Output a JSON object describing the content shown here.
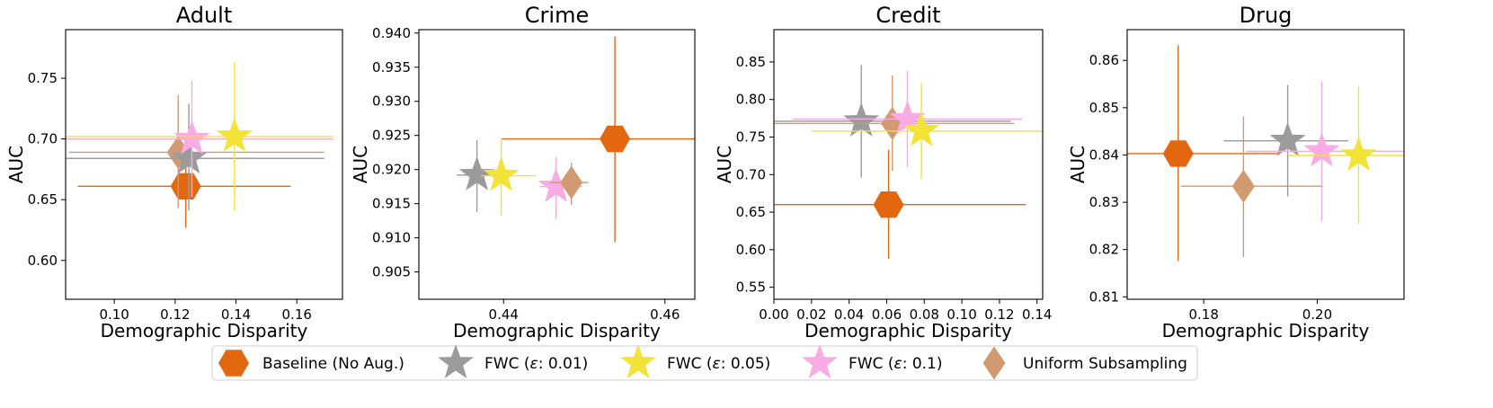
{
  "chart_data": {
    "type": "scatter",
    "legend": {
      "placement": "bottom-center",
      "entries": [
        {
          "label": "Baseline (No Aug.)",
          "marker": "hexagon",
          "color": "#e2670f"
        },
        {
          "label_prefix": "FWC (",
          "label_symbol": "ε",
          "label_suffix": ": 0.01)",
          "marker": "star",
          "color": "#9b9b9b"
        },
        {
          "label_prefix": "FWC (",
          "label_symbol": "ε",
          "label_suffix": ": 0.05)",
          "marker": "star",
          "color": "#f2e336"
        },
        {
          "label_prefix": "FWC (",
          "label_symbol": "ε",
          "label_suffix": ": 0.1)",
          "marker": "star",
          "color": "#f9abe3"
        },
        {
          "label": "Uniform Subsampling",
          "marker": "diamond",
          "color": "#d29a70"
        }
      ]
    },
    "panels": [
      {
        "title": "Adult",
        "xlabel": "Demographic Disparity",
        "ylabel": "AUC",
        "xlim": [
          0.084,
          0.175
        ],
        "ylim": [
          0.568,
          0.79
        ],
        "xticks": [
          0.1,
          0.12,
          0.14,
          0.16
        ],
        "xtick_labels": [
          "0.10",
          "0.12",
          "0.14",
          "0.16"
        ],
        "yticks": [
          0.6,
          0.65,
          0.7,
          0.75
        ],
        "ytick_labels": [
          "0.60",
          "0.65",
          "0.70",
          "0.75"
        ],
        "points": [
          {
            "series": 0,
            "x": 0.1235,
            "y": 0.661,
            "xerr": [
              0.088,
              0.158
            ],
            "yerr": [
              0.627,
              0.698
            ]
          },
          {
            "series": 4,
            "x": 0.121,
            "y": 0.689,
            "xerr": [
              0.085,
              0.169
            ],
            "yerr": [
              0.643,
              0.736
            ]
          },
          {
            "series": 1,
            "x": 0.1245,
            "y": 0.684,
            "xerr": [
              0.08,
              0.169
            ],
            "yerr": [
              0.641,
              0.729
            ]
          },
          {
            "series": 3,
            "x": 0.1255,
            "y": 0.7,
            "xerr": [
              0.08,
              0.172
            ],
            "yerr": [
              0.652,
              0.748
            ]
          },
          {
            "series": 2,
            "x": 0.1395,
            "y": 0.702,
            "xerr": [
              0.08,
              0.172
            ],
            "yerr": [
              0.641,
              0.763
            ]
          }
        ]
      },
      {
        "title": "Crime",
        "xlabel": "Demographic Disparity",
        "ylabel": "AUC",
        "xlim": [
          0.4295,
          0.4637
        ],
        "ylim": [
          0.901,
          0.9405
        ],
        "xticks": [
          0.44,
          0.46
        ],
        "xtick_labels": [
          "0.44",
          "0.46"
        ],
        "yticks": [
          0.905,
          0.91,
          0.915,
          0.92,
          0.925,
          0.93,
          0.935,
          0.94
        ],
        "ytick_labels": [
          "0.905",
          "0.910",
          "0.915",
          "0.920",
          "0.925",
          "0.930",
          "0.935",
          "0.940"
        ],
        "points": [
          {
            "series": 1,
            "x": 0.4367,
            "y": 0.9192,
            "xerr": [
              0.4342,
              0.4402
            ],
            "yerr": [
              0.9138,
              0.9243
            ]
          },
          {
            "series": 2,
            "x": 0.4397,
            "y": 0.9191,
            "xerr": [
              0.4372,
              0.444
            ],
            "yerr": [
              0.9133,
              0.9246
            ]
          },
          {
            "series": 3,
            "x": 0.4465,
            "y": 0.9175,
            "xerr": [
              0.4445,
              0.4498
            ],
            "yerr": [
              0.9128,
              0.9218
            ]
          },
          {
            "series": 4,
            "x": 0.4484,
            "y": 0.9181,
            "xerr": [
              0.4458,
              0.4505
            ],
            "yerr": [
              0.9148,
              0.921
            ]
          },
          {
            "series": 0,
            "x": 0.4538,
            "y": 0.9245,
            "xerr": [
              0.4398,
              0.4637
            ],
            "yerr": [
              0.9094,
              0.9395
            ]
          }
        ]
      },
      {
        "title": "Credit",
        "xlabel": "Demographic Disparity",
        "ylabel": "AUC",
        "xlim": [
          0.0,
          0.143
        ],
        "ylim": [
          0.534,
          0.893
        ],
        "xticks": [
          0.0,
          0.02,
          0.04,
          0.06,
          0.08,
          0.1,
          0.12,
          0.14
        ],
        "xtick_labels": [
          "0.00",
          "0.02",
          "0.04",
          "0.06",
          "0.08",
          "0.10",
          "0.12",
          "0.14"
        ],
        "yticks": [
          0.55,
          0.6,
          0.65,
          0.7,
          0.75,
          0.8,
          0.85
        ],
        "ytick_labels": [
          "0.55",
          "0.60",
          "0.65",
          "0.70",
          "0.75",
          "0.80",
          "0.85"
        ],
        "points": [
          {
            "series": 0,
            "x": 0.061,
            "y": 0.66,
            "xerr": [
              0.0,
              0.134
            ],
            "yerr": [
              0.588,
              0.733
            ]
          },
          {
            "series": 1,
            "x": 0.0465,
            "y": 0.771,
            "xerr": [
              0.0,
              0.126
            ],
            "yerr": [
              0.696,
              0.846
            ]
          },
          {
            "series": 4,
            "x": 0.063,
            "y": 0.768,
            "xerr": [
              0.0,
              0.128
            ],
            "yerr": [
              0.705,
              0.832
            ]
          },
          {
            "series": 3,
            "x": 0.071,
            "y": 0.774,
            "xerr": [
              0.01,
              0.132
            ],
            "yerr": [
              0.71,
              0.838
            ]
          },
          {
            "series": 2,
            "x": 0.0785,
            "y": 0.758,
            "xerr": [
              0.02,
              0.143
            ],
            "yerr": [
              0.694,
              0.822
            ]
          }
        ]
      },
      {
        "title": "Drug",
        "xlabel": "Demographic Disparity",
        "ylabel": "AUC",
        "xlim": [
          0.1665,
          0.2153
        ],
        "ylim": [
          0.8095,
          0.8665
        ],
        "xticks": [
          0.18,
          0.2
        ],
        "xtick_labels": [
          "0.18",
          "0.20"
        ],
        "yticks": [
          0.81,
          0.82,
          0.83,
          0.84,
          0.85,
          0.86
        ],
        "ytick_labels": [
          "0.81",
          "0.82",
          "0.83",
          "0.84",
          "0.85",
          "0.86"
        ],
        "points": [
          {
            "series": 0,
            "x": 0.1755,
            "y": 0.8403,
            "xerr": [
              0.1665,
              0.1935
            ],
            "yerr": [
              0.8176,
              0.8632
            ]
          },
          {
            "series": 4,
            "x": 0.187,
            "y": 0.8334,
            "xerr": [
              0.176,
              0.201
            ],
            "yerr": [
              0.8184,
              0.8482
            ]
          },
          {
            "series": 1,
            "x": 0.1948,
            "y": 0.843,
            "xerr": [
              0.1835,
              0.2055
            ],
            "yerr": [
              0.8312,
              0.8548
            ]
          },
          {
            "series": 3,
            "x": 0.2008,
            "y": 0.8408,
            "xerr": [
              0.1875,
              0.2153
            ],
            "yerr": [
              0.826,
              0.8555
            ]
          },
          {
            "series": 2,
            "x": 0.2073,
            "y": 0.8399,
            "xerr": [
              0.195,
              0.2153
            ],
            "yerr": [
              0.8255,
              0.8545
            ]
          }
        ]
      }
    ]
  }
}
